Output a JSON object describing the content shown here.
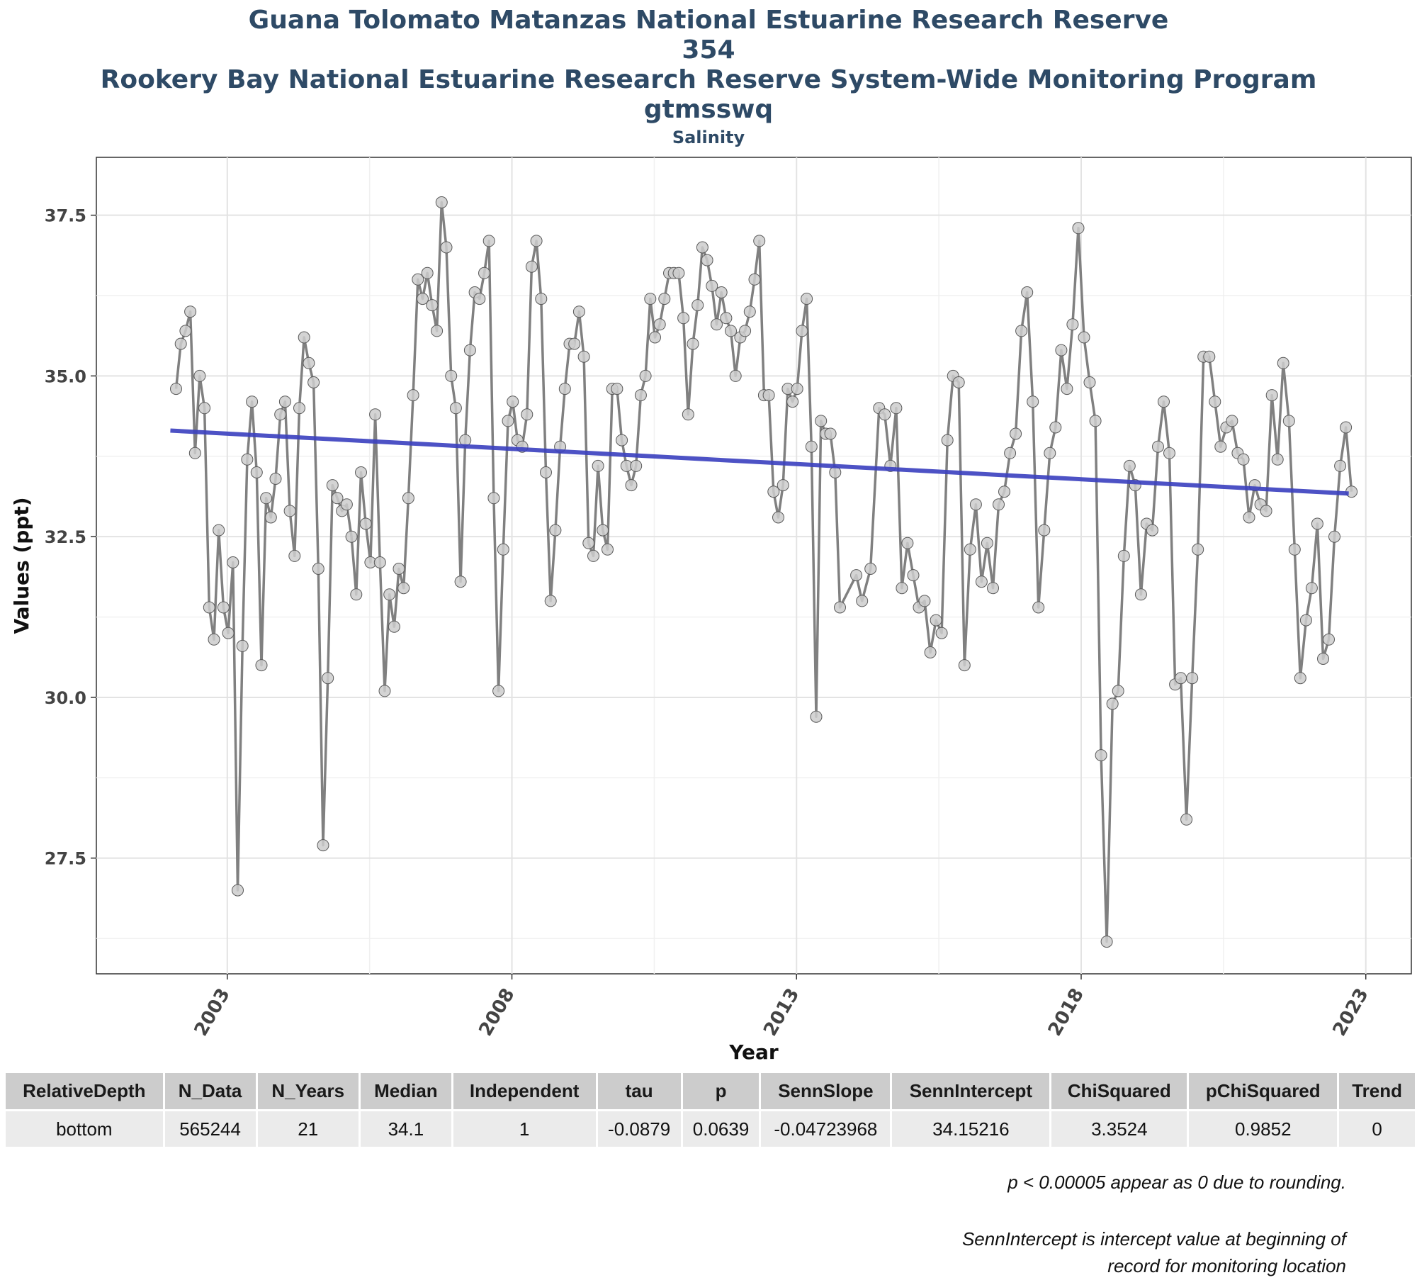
{
  "titles": {
    "line1": "Guana Tolomato Matanzas National Estuarine Research Reserve",
    "line2": "354",
    "line3": "Rookery Bay National Estuarine Research Reserve System-Wide Monitoring Program",
    "line4": "gtmsswq",
    "subtitle": "Salinity"
  },
  "colors": {
    "series_line": "#808080",
    "points_fill": "#cccccc",
    "points_stroke": "#5a5a5a",
    "trend_line": "#3a3fbf",
    "title": "#2e4a66"
  },
  "chart_data": {
    "type": "line",
    "title": "",
    "xlabel": "Year",
    "ylabel": "Values (ppt)",
    "xlim": [
      2000.7,
      2023.8
    ],
    "ylim": [
      25.7,
      38.4
    ],
    "x_ticks": [
      2003,
      2008,
      2013,
      2018,
      2023
    ],
    "y_ticks": [
      27.5,
      30.0,
      32.5,
      35.0,
      37.5
    ],
    "y_tick_labels": [
      "27.5",
      "30.0",
      "32.5",
      "35.0",
      "37.5"
    ],
    "grid": true,
    "series": [
      {
        "name": "",
        "x_start": 2002.1,
        "x_step": 0.0833,
        "values": [
          34.8,
          35.5,
          35.7,
          36.0,
          33.8,
          35.0,
          34.5,
          31.4,
          30.9,
          32.6,
          31.4,
          31.0,
          32.1,
          27.0,
          30.8,
          33.7,
          34.6,
          33.5,
          30.5,
          33.1,
          32.8,
          33.4,
          34.4,
          34.6,
          32.9,
          32.2,
          34.5,
          35.6,
          35.2,
          34.9,
          32.0,
          27.7,
          30.3,
          33.3,
          33.1,
          32.9,
          33.0,
          32.5,
          31.6,
          33.5,
          32.7,
          32.1,
          34.4,
          32.1,
          30.1,
          31.6,
          31.1,
          32.0,
          31.7,
          33.1,
          34.7,
          36.5,
          36.2,
          36.6,
          36.1,
          35.7,
          37.7,
          37.0,
          35.0,
          34.5,
          31.8,
          34.0,
          35.4,
          36.3,
          36.2,
          36.6,
          37.1,
          33.1,
          30.1,
          32.3,
          34.3,
          34.6,
          34.0,
          33.9,
          34.4,
          36.7,
          37.1,
          36.2,
          33.5,
          31.5,
          32.6,
          33.9,
          34.8,
          35.5,
          35.5,
          36.0,
          35.3,
          32.4,
          32.2,
          33.6,
          32.6,
          32.3,
          34.8,
          34.8,
          34.0,
          33.6,
          33.3,
          33.6,
          34.7,
          35.0,
          36.2,
          35.6,
          35.8,
          36.2,
          36.6,
          36.6,
          36.6,
          35.9,
          34.4,
          35.5,
          36.1,
          37.0,
          36.8,
          36.4,
          35.8,
          36.3,
          35.9,
          35.7,
          35.0,
          35.6,
          35.7,
          36.0,
          36.5,
          37.1,
          34.7,
          34.7,
          33.2,
          32.8,
          33.3,
          34.8,
          34.6,
          34.8,
          35.7,
          36.2,
          33.9,
          29.7,
          34.3,
          34.1,
          34.1,
          33.5,
          31.4
        ],
        "segments": [
          {
            "x": [
              2014.05,
              2014.15,
              2014.3,
              2014.45,
              2014.55,
              2014.65,
              2014.75,
              2014.85,
              2014.95,
              2015.05,
              2015.15,
              2015.25,
              2015.35,
              2015.45,
              2015.55,
              2015.65,
              2015.75,
              2015.85,
              2015.95,
              2016.05,
              2016.15,
              2016.25,
              2016.35,
              2016.45,
              2016.55,
              2016.65,
              2016.75,
              2016.85,
              2016.95,
              2017.05,
              2017.15,
              2017.25,
              2017.35,
              2017.45,
              2017.55,
              2017.65,
              2017.75,
              2017.85,
              2017.95,
              2018.05,
              2018.15,
              2018.25,
              2018.35,
              2018.45,
              2018.55,
              2018.65,
              2018.75,
              2018.85,
              2018.95,
              2019.05,
              2019.15,
              2019.25,
              2019.35,
              2019.45,
              2019.55,
              2019.65,
              2019.75,
              2019.85,
              2019.95,
              2020.05,
              2020.15,
              2020.25,
              2020.35,
              2020.45,
              2020.55,
              2020.65,
              2020.75,
              2020.85,
              2020.95,
              2021.05,
              2021.15,
              2021.25,
              2021.35,
              2021.45,
              2021.55,
              2021.65,
              2021.75,
              2021.85,
              2021.95,
              2022.05,
              2022.15,
              2022.25,
              2022.35,
              2022.45,
              2022.55,
              2022.65,
              2022.75
            ],
            "y": [
              31.9,
              31.5,
              32.0,
              34.5,
              34.4,
              33.6,
              34.5,
              31.7,
              32.4,
              31.9,
              31.4,
              31.5,
              30.7,
              31.2,
              31.0,
              34.0,
              35.0,
              34.9,
              30.5,
              32.3,
              33.0,
              31.8,
              32.4,
              31.7,
              33.0,
              33.2,
              33.8,
              34.1,
              35.7,
              36.3,
              34.6,
              31.4,
              32.6,
              33.8,
              34.2,
              35.4,
              34.8,
              35.8,
              37.3,
              35.6,
              34.9,
              34.3,
              29.1,
              26.2,
              29.9,
              30.1,
              32.2,
              33.6,
              33.3,
              31.6,
              32.7,
              32.6,
              33.9,
              34.6,
              33.8,
              30.2,
              30.3,
              28.1,
              30.3,
              32.3,
              35.3,
              35.3,
              34.6,
              33.9,
              34.2,
              34.3,
              33.8,
              33.7,
              32.8,
              33.3,
              33.0,
              32.9,
              34.7,
              33.7,
              35.2,
              34.3,
              32.3,
              30.3,
              31.2,
              31.7,
              32.7,
              30.6,
              30.9,
              32.5,
              33.6,
              34.2,
              33.2
            ]
          }
        ]
      },
      {
        "name": "",
        "x": [
          2002.0,
          2022.7
        ],
        "values": [
          34.15,
          33.17
        ]
      }
    ]
  },
  "table": {
    "headers": [
      "RelativeDepth",
      "N_Data",
      "N_Years",
      "Median",
      "Independent",
      "tau",
      "p",
      "SennSlope",
      "SennIntercept",
      "ChiSquared",
      "pChiSquared",
      "Trend"
    ],
    "rows": [
      [
        "bottom",
        "565244",
        "21",
        "34.1",
        "1",
        "-0.0879",
        "0.0639",
        "-0.04723968",
        "34.15216",
        "3.3524",
        "0.9852",
        "0"
      ]
    ]
  },
  "notes": {
    "note1": "p < 0.00005 appear as 0 due to rounding.",
    "note2_line1": "SennIntercept is intercept value at beginning of",
    "note2_line2": "record for monitoring location"
  }
}
